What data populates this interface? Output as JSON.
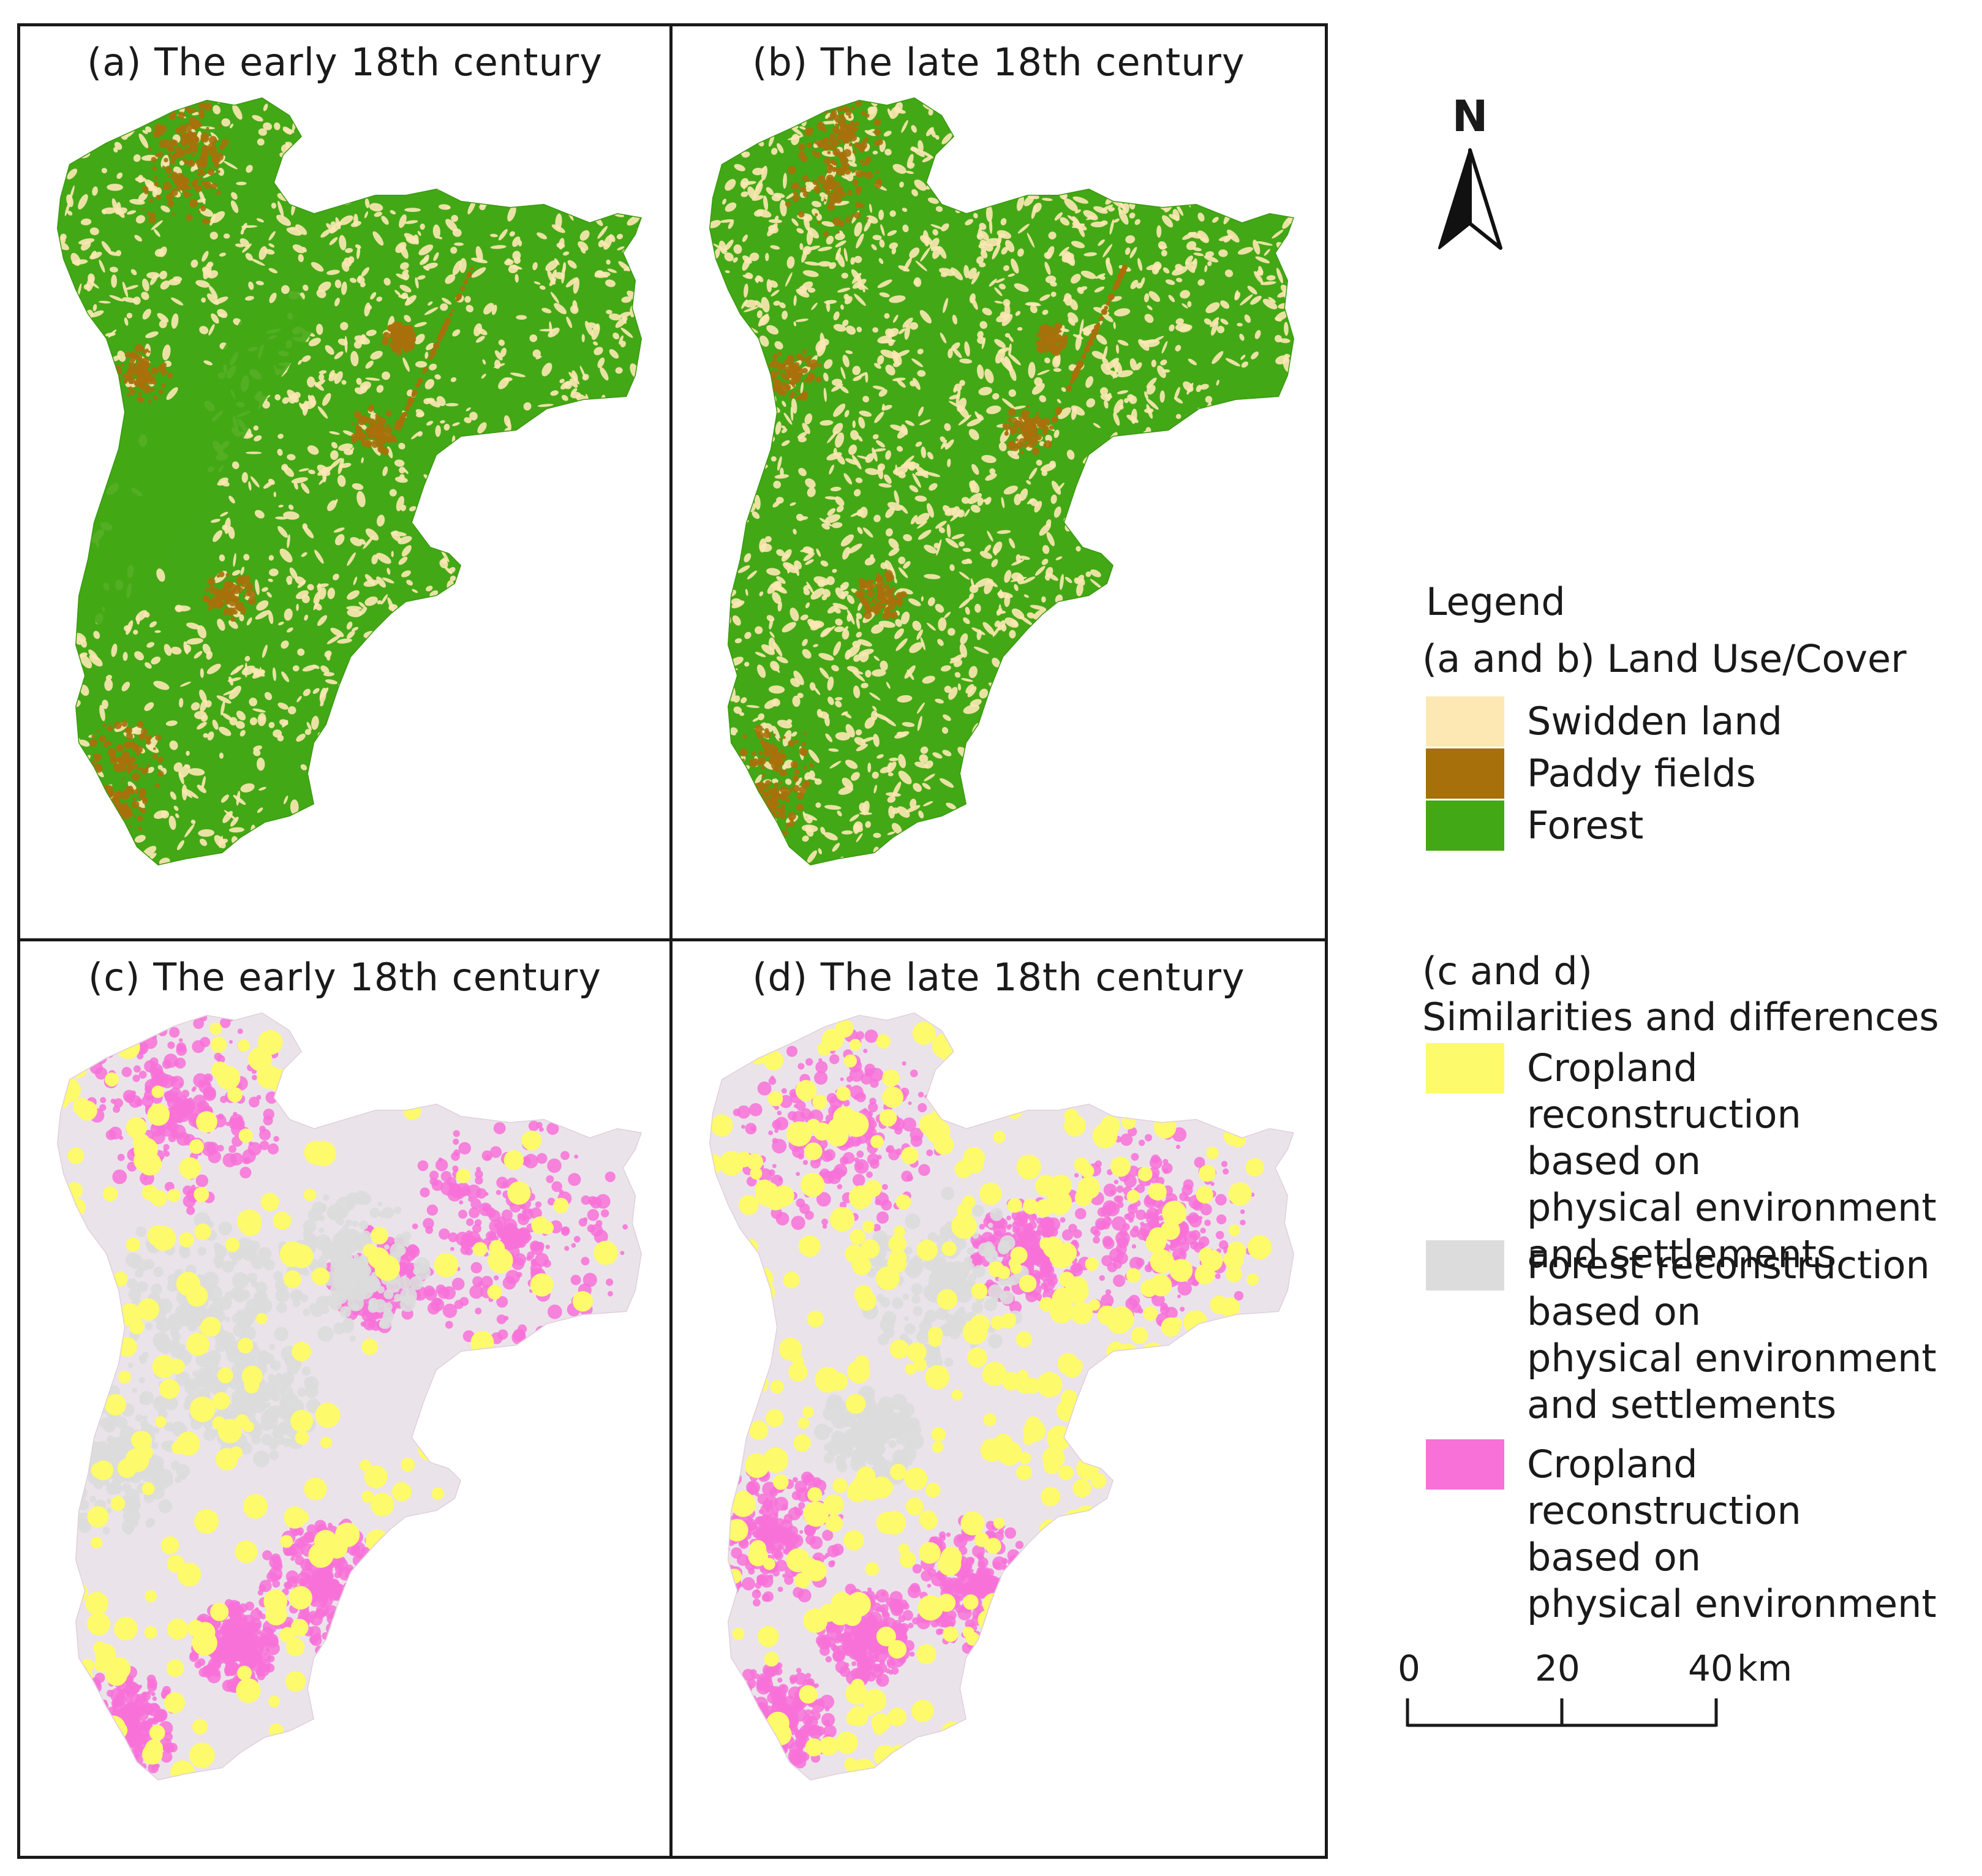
{
  "panels": [
    {
      "title": "(a) The early 18th century",
      "kind": "lulc",
      "variant": "early"
    },
    {
      "title": "(b) The late 18th century",
      "kind": "lulc",
      "variant": "late"
    },
    {
      "title": "(c) The early 18th century",
      "kind": "sim",
      "variant": "early"
    },
    {
      "title": "(d) The late 18th century",
      "kind": "sim",
      "variant": "late"
    }
  ],
  "north_arrow": {
    "label": "N"
  },
  "legend": {
    "title": "Legend",
    "section_ab": "(a and b) Land Use/Cover",
    "items_ab": [
      {
        "label": "Swidden land",
        "color": "#fde8b4"
      },
      {
        "label": "Paddy fields",
        "color": "#a8700b"
      },
      {
        "label": "Forest",
        "color": "#43a815"
      }
    ],
    "section_cd_line1": "(c and d)",
    "section_cd_line2": "Similarities and differences",
    "items_cd": [
      {
        "lines": [
          "Cropland reconstruction",
          "based on",
          "physical environment",
          "and settlements"
        ],
        "color": "#fdfa6b"
      },
      {
        "lines": [
          "Forest reconstruction",
          "based on",
          "physical environment",
          "and settlements"
        ],
        "color": "#dcdcdc"
      },
      {
        "lines": [
          "Cropland reconstruction",
          "based on",
          "physical environment"
        ],
        "color": "#f871d8"
      }
    ]
  },
  "scale_bar": {
    "ticks": [
      "0",
      "20",
      "40"
    ],
    "unit": "km"
  }
}
